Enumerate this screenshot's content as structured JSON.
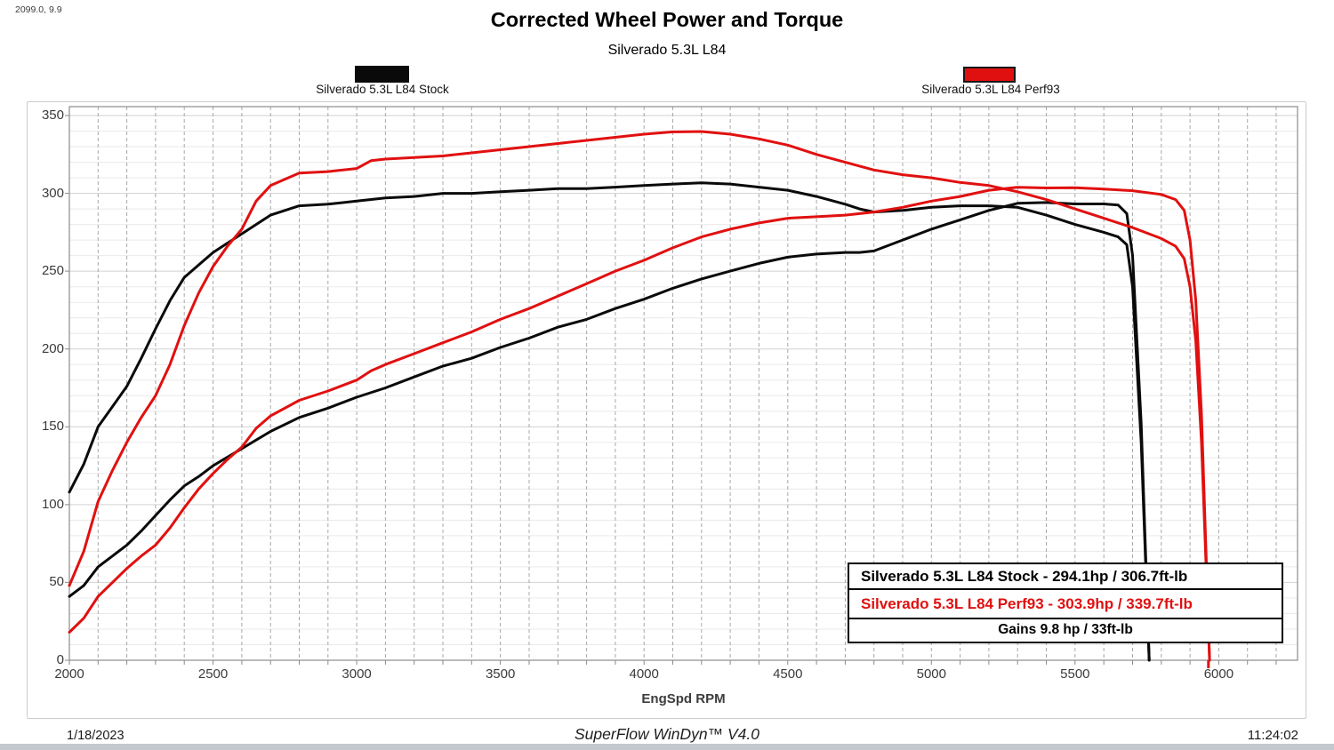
{
  "window": {
    "corner_readout": "2099.0, 9.9",
    "footer": {
      "date": "1/18/2023",
      "app": "SuperFlow WinDyn™ V4.0",
      "time": "11:24:02"
    }
  },
  "header": {
    "title": "Corrected Wheel Power and Torque",
    "subtitle": "Silverado 5.3L L84"
  },
  "legend": {
    "left": {
      "label": "Silverado 5.3L L84 Stock",
      "color": "#0a0a0a"
    },
    "right": {
      "label": "Silverado 5.3L L84 Perf93",
      "color": "#e11010"
    }
  },
  "results_box": {
    "rows": [
      {
        "text": "Silverado 5.3L L84 Stock - 294.1hp / 306.7ft-lb",
        "color": "#000000",
        "align": "left"
      },
      {
        "text": "Silverado 5.3L L84 Perf93 - 303.9hp / 339.7ft-lb",
        "color": "#e11010",
        "align": "left"
      },
      {
        "text": "Gains 9.8 hp / 33ft-lb",
        "color": "#000000",
        "align": "center"
      }
    ]
  },
  "chart_data": {
    "type": "line",
    "title": "Corrected Wheel Power and Torque",
    "subtitle": "Silverado 5.3L L84",
    "xlabel": "EngSpd RPM",
    "ylabel": "",
    "xlim": [
      2000,
      6275
    ],
    "ylim": [
      0,
      355.8
    ],
    "x_ticks": [
      2000,
      2500,
      3000,
      3500,
      4000,
      4500,
      5000,
      5500,
      6000
    ],
    "x_minor_step": 100,
    "y_ticks": [
      0,
      50,
      100,
      150,
      200,
      250,
      300,
      350
    ],
    "y_minor_step": 10,
    "grid": "horizontal solid light gray every 10; vertical dashed gray every 100 RPM",
    "legend_position": "top",
    "peaks": {
      "stock": "294.1hp / 306.7ft-lb",
      "perf93": "303.9hp / 339.7ft-lb",
      "gains": "9.8 hp / 33ft-lb"
    },
    "series": [
      {
        "name": "Stock Torque (ft-lb)",
        "color": "#0a0a0a",
        "points": [
          [
            2000,
            108
          ],
          [
            2050,
            126
          ],
          [
            2100,
            150
          ],
          [
            2150,
            163
          ],
          [
            2200,
            176
          ],
          [
            2250,
            194
          ],
          [
            2300,
            213
          ],
          [
            2350,
            231
          ],
          [
            2400,
            246
          ],
          [
            2450,
            254
          ],
          [
            2500,
            262
          ],
          [
            2600,
            274
          ],
          [
            2700,
            286
          ],
          [
            2800,
            292
          ],
          [
            2900,
            293
          ],
          [
            3000,
            295
          ],
          [
            3100,
            297
          ],
          [
            3200,
            298
          ],
          [
            3300,
            300
          ],
          [
            3400,
            300
          ],
          [
            3500,
            301
          ],
          [
            3600,
            302
          ],
          [
            3700,
            303
          ],
          [
            3800,
            303
          ],
          [
            3900,
            304
          ],
          [
            4000,
            305
          ],
          [
            4100,
            306
          ],
          [
            4200,
            306.7
          ],
          [
            4300,
            306
          ],
          [
            4400,
            304
          ],
          [
            4500,
            302
          ],
          [
            4600,
            298
          ],
          [
            4700,
            293
          ],
          [
            4750,
            290
          ],
          [
            4800,
            288
          ],
          [
            4900,
            289
          ],
          [
            5000,
            291
          ],
          [
            5100,
            292
          ],
          [
            5200,
            292
          ],
          [
            5300,
            291
          ],
          [
            5400,
            286
          ],
          [
            5500,
            280
          ],
          [
            5600,
            275
          ],
          [
            5650,
            272
          ],
          [
            5680,
            267
          ],
          [
            5700,
            240
          ],
          [
            5730,
            140
          ],
          [
            5758,
            0
          ]
        ]
      },
      {
        "name": "Stock Power (hp)",
        "color": "#0a0a0a",
        "points": [
          [
            2000,
            41
          ],
          [
            2050,
            48
          ],
          [
            2100,
            60
          ],
          [
            2150,
            67
          ],
          [
            2200,
            74
          ],
          [
            2250,
            83
          ],
          [
            2300,
            93
          ],
          [
            2350,
            103
          ],
          [
            2400,
            112
          ],
          [
            2450,
            118
          ],
          [
            2500,
            125
          ],
          [
            2600,
            136
          ],
          [
            2700,
            147
          ],
          [
            2800,
            156
          ],
          [
            2900,
            162
          ],
          [
            3000,
            169
          ],
          [
            3100,
            175
          ],
          [
            3200,
            182
          ],
          [
            3300,
            189
          ],
          [
            3400,
            194
          ],
          [
            3500,
            201
          ],
          [
            3600,
            207
          ],
          [
            3700,
            214
          ],
          [
            3800,
            219
          ],
          [
            3900,
            226
          ],
          [
            4000,
            232
          ],
          [
            4100,
            239
          ],
          [
            4200,
            245
          ],
          [
            4300,
            250
          ],
          [
            4400,
            255
          ],
          [
            4500,
            259
          ],
          [
            4600,
            261
          ],
          [
            4700,
            262
          ],
          [
            4750,
            262
          ],
          [
            4800,
            263
          ],
          [
            4900,
            270
          ],
          [
            5000,
            277
          ],
          [
            5100,
            283
          ],
          [
            5200,
            289
          ],
          [
            5300,
            293.6
          ],
          [
            5400,
            294.1
          ],
          [
            5500,
            293.2
          ],
          [
            5600,
            293.2
          ],
          [
            5650,
            292.5
          ],
          [
            5680,
            287
          ],
          [
            5700,
            260
          ],
          [
            5730,
            152
          ],
          [
            5758,
            0
          ]
        ]
      },
      {
        "name": "Perf93 Torque (ft-lb)",
        "color": "#e11010",
        "points": [
          [
            2000,
            48
          ],
          [
            2050,
            70
          ],
          [
            2100,
            102
          ],
          [
            2150,
            122
          ],
          [
            2200,
            140
          ],
          [
            2250,
            156
          ],
          [
            2300,
            170
          ],
          [
            2350,
            190
          ],
          [
            2400,
            215
          ],
          [
            2450,
            236
          ],
          [
            2500,
            253
          ],
          [
            2550,
            266
          ],
          [
            2600,
            277
          ],
          [
            2650,
            295
          ],
          [
            2700,
            305
          ],
          [
            2750,
            309
          ],
          [
            2800,
            313
          ],
          [
            2900,
            314
          ],
          [
            3000,
            316
          ],
          [
            3050,
            321
          ],
          [
            3100,
            322
          ],
          [
            3200,
            323
          ],
          [
            3300,
            324
          ],
          [
            3400,
            326
          ],
          [
            3500,
            328
          ],
          [
            3600,
            330
          ],
          [
            3700,
            332
          ],
          [
            3800,
            334
          ],
          [
            3900,
            336
          ],
          [
            4000,
            338
          ],
          [
            4100,
            339.5
          ],
          [
            4200,
            339.7
          ],
          [
            4300,
            338
          ],
          [
            4400,
            335
          ],
          [
            4500,
            331
          ],
          [
            4600,
            325
          ],
          [
            4700,
            320
          ],
          [
            4800,
            315
          ],
          [
            4900,
            312
          ],
          [
            5000,
            310
          ],
          [
            5100,
            307
          ],
          [
            5200,
            305
          ],
          [
            5300,
            301
          ],
          [
            5400,
            296
          ],
          [
            5500,
            290
          ],
          [
            5600,
            284
          ],
          [
            5700,
            278
          ],
          [
            5800,
            271
          ],
          [
            5850,
            266
          ],
          [
            5880,
            258
          ],
          [
            5900,
            240
          ],
          [
            5920,
            205
          ],
          [
            5940,
            140
          ],
          [
            5960,
            40
          ],
          [
            5968,
            0
          ]
        ]
      },
      {
        "name": "Perf93 Power (hp)",
        "color": "#e11010",
        "points": [
          [
            2000,
            18
          ],
          [
            2050,
            27
          ],
          [
            2100,
            41
          ],
          [
            2150,
            50
          ],
          [
            2200,
            59
          ],
          [
            2250,
            67
          ],
          [
            2300,
            74
          ],
          [
            2350,
            85
          ],
          [
            2400,
            98
          ],
          [
            2450,
            110
          ],
          [
            2500,
            120
          ],
          [
            2550,
            129
          ],
          [
            2600,
            137
          ],
          [
            2650,
            149
          ],
          [
            2700,
            157
          ],
          [
            2750,
            162
          ],
          [
            2800,
            167
          ],
          [
            2900,
            173
          ],
          [
            3000,
            180
          ],
          [
            3050,
            186
          ],
          [
            3100,
            190
          ],
          [
            3200,
            197
          ],
          [
            3300,
            204
          ],
          [
            3400,
            211
          ],
          [
            3500,
            219
          ],
          [
            3600,
            226
          ],
          [
            3700,
            234
          ],
          [
            3800,
            242
          ],
          [
            3900,
            250
          ],
          [
            4000,
            257
          ],
          [
            4100,
            265
          ],
          [
            4200,
            272
          ],
          [
            4300,
            277
          ],
          [
            4400,
            281
          ],
          [
            4500,
            284
          ],
          [
            4600,
            285
          ],
          [
            4700,
            286
          ],
          [
            4800,
            288
          ],
          [
            4900,
            291
          ],
          [
            5000,
            295
          ],
          [
            5100,
            298
          ],
          [
            5200,
            302
          ],
          [
            5300,
            303.9
          ],
          [
            5400,
            303.5
          ],
          [
            5500,
            303.6
          ],
          [
            5600,
            302.8
          ],
          [
            5700,
            301.7
          ],
          [
            5800,
            299.3
          ],
          [
            5850,
            296
          ],
          [
            5880,
            289
          ],
          [
            5900,
            270
          ],
          [
            5920,
            231
          ],
          [
            5940,
            158
          ],
          [
            5960,
            45
          ],
          [
            5968,
            0
          ]
        ]
      }
    ]
  }
}
